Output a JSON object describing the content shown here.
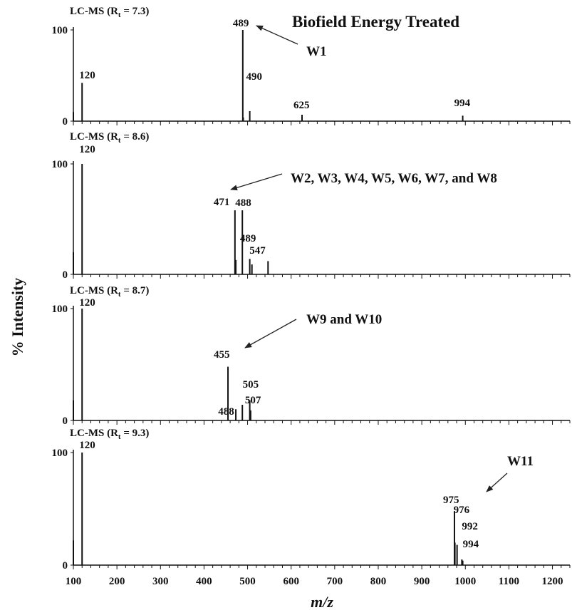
{
  "figure_title": "Biofield Energy Treated",
  "y_axis_label": "% Intensity",
  "x_axis_label": "m/z",
  "x_ticks": [
    "100",
    "200",
    "300",
    "400",
    "500",
    "600",
    "700",
    "800",
    "900",
    "1000",
    "1100",
    "1200"
  ],
  "colors": {
    "peak": "#111111",
    "axis": "#111111",
    "annotation": "#999999",
    "arrow": "#222222"
  },
  "chart_data": [
    {
      "type": "bar",
      "subtitle": "LC-MS (Rt = 7.3)",
      "subtitle_main": "LC-MS (R",
      "subtitle_sub": "t",
      "subtitle_rest": " = 7.3)",
      "xlim": [
        100,
        1240
      ],
      "ylim": [
        0,
        100
      ],
      "y_ticks": [
        "0",
        "100"
      ],
      "peaks": [
        {
          "x": 100,
          "y": 10
        },
        {
          "x": 120,
          "y": 42
        },
        {
          "x": 489,
          "y": 100
        },
        {
          "x": 490,
          "y": 4
        },
        {
          "x": 505,
          "y": 11
        },
        {
          "x": 625,
          "y": 7
        },
        {
          "x": 994,
          "y": 6
        }
      ],
      "labels": [
        {
          "text": "120",
          "mz": 120
        },
        {
          "text": "489",
          "mz": 489
        },
        {
          "text": "490",
          "mz": 490
        },
        {
          "text": "625",
          "mz": 625
        },
        {
          "text": "994",
          "mz": 994
        }
      ],
      "annotation": "W1"
    },
    {
      "type": "bar",
      "subtitle": "LC-MS (Rt = 8.6)",
      "subtitle_main": "LC-MS (R",
      "subtitle_sub": "t",
      "subtitle_rest": " = 8.6)",
      "xlim": [
        100,
        1240
      ],
      "ylim": [
        0,
        100
      ],
      "y_ticks": [
        "0",
        "100"
      ],
      "peaks": [
        {
          "x": 100,
          "y": 20
        },
        {
          "x": 120,
          "y": 100
        },
        {
          "x": 471,
          "y": 58
        },
        {
          "x": 473,
          "y": 13
        },
        {
          "x": 488,
          "y": 58
        },
        {
          "x": 505,
          "y": 14
        },
        {
          "x": 510,
          "y": 9
        },
        {
          "x": 547,
          "y": 12
        }
      ],
      "labels": [
        {
          "text": "120",
          "mz": 120
        },
        {
          "text": "471",
          "mz": 471
        },
        {
          "text": "488",
          "mz": 488
        },
        {
          "text": "489",
          "mz": 489
        },
        {
          "text": "547",
          "mz": 547
        }
      ],
      "annotation": "W2, W3, W4, W5, W6, W7, and W8"
    },
    {
      "type": "bar",
      "subtitle": "LC-MS (Rt = 8.7)",
      "subtitle_main": "LC-MS (R",
      "subtitle_sub": "t",
      "subtitle_rest": " = 8.7)",
      "xlim": [
        100,
        1240
      ],
      "ylim": [
        0,
        100
      ],
      "y_ticks": [
        "0",
        "100"
      ],
      "peaks": [
        {
          "x": 100,
          "y": 18
        },
        {
          "x": 120,
          "y": 100
        },
        {
          "x": 455,
          "y": 48
        },
        {
          "x": 473,
          "y": 10
        },
        {
          "x": 488,
          "y": 14
        },
        {
          "x": 505,
          "y": 18
        },
        {
          "x": 507,
          "y": 9
        }
      ],
      "labels": [
        {
          "text": "120",
          "mz": 120
        },
        {
          "text": "455",
          "mz": 455
        },
        {
          "text": "488",
          "mz": 488
        },
        {
          "text": "505",
          "mz": 505
        },
        {
          "text": "507",
          "mz": 507
        }
      ],
      "annotation": "W9 and W10"
    },
    {
      "type": "bar",
      "subtitle": "LC-MS (Rt = 9.3)",
      "subtitle_main": "LC-MS (R",
      "subtitle_sub": "t",
      "subtitle_rest": " = 9.3)",
      "xlim": [
        100,
        1240
      ],
      "ylim": [
        0,
        100
      ],
      "y_ticks": [
        "0",
        "100"
      ],
      "peaks": [
        {
          "x": 100,
          "y": 22
        },
        {
          "x": 120,
          "y": 100
        },
        {
          "x": 975,
          "y": 48
        },
        {
          "x": 976,
          "y": 20
        },
        {
          "x": 981,
          "y": 18
        },
        {
          "x": 992,
          "y": 5
        },
        {
          "x": 994,
          "y": 4
        }
      ],
      "labels": [
        {
          "text": "120",
          "mz": 120
        },
        {
          "text": "975",
          "mz": 975
        },
        {
          "text": "976",
          "mz": 976
        },
        {
          "text": "992",
          "mz": 992
        },
        {
          "text": "994",
          "mz": 994
        }
      ],
      "annotation": "W11"
    }
  ]
}
